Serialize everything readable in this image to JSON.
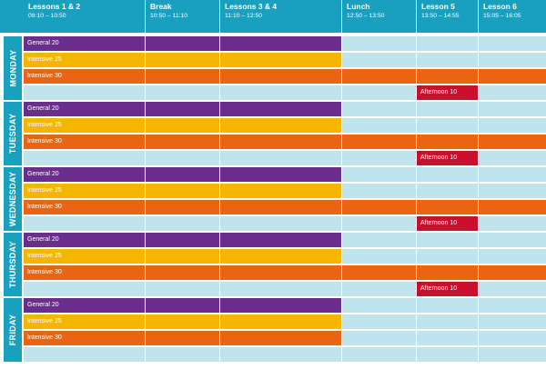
{
  "colors": {
    "header": "#1aa0bf",
    "track": "#bfe4ec",
    "general": "#6a2f8c",
    "intensive25": "#f7b500",
    "intensive30": "#e96514",
    "afternoon": "#c8102e"
  },
  "columns": [
    {
      "name": "Lessons 1 & 2",
      "time": "09:10 – 10:50"
    },
    {
      "name": "Break",
      "time": "10:50 – 11:10"
    },
    {
      "name": "Lessons 3 & 4",
      "time": "11:10 – 12:50"
    },
    {
      "name": "Lunch",
      "time": "12:50 – 13:50"
    },
    {
      "name": "Lesson 5",
      "time": "13:50 – 14:55"
    },
    {
      "name": "Lesson 6",
      "time": "15:05 – 16:05"
    }
  ],
  "days": [
    "MONDAY",
    "TUESDAY",
    "WEDNESDAY",
    "THURSDAY",
    "FRIDAY"
  ],
  "courses": {
    "general": "General 20",
    "intensive25": "Intensive 25",
    "intensive30": "Intensive 30",
    "afternoon": "Afternoon 10"
  },
  "footnote": ""
}
